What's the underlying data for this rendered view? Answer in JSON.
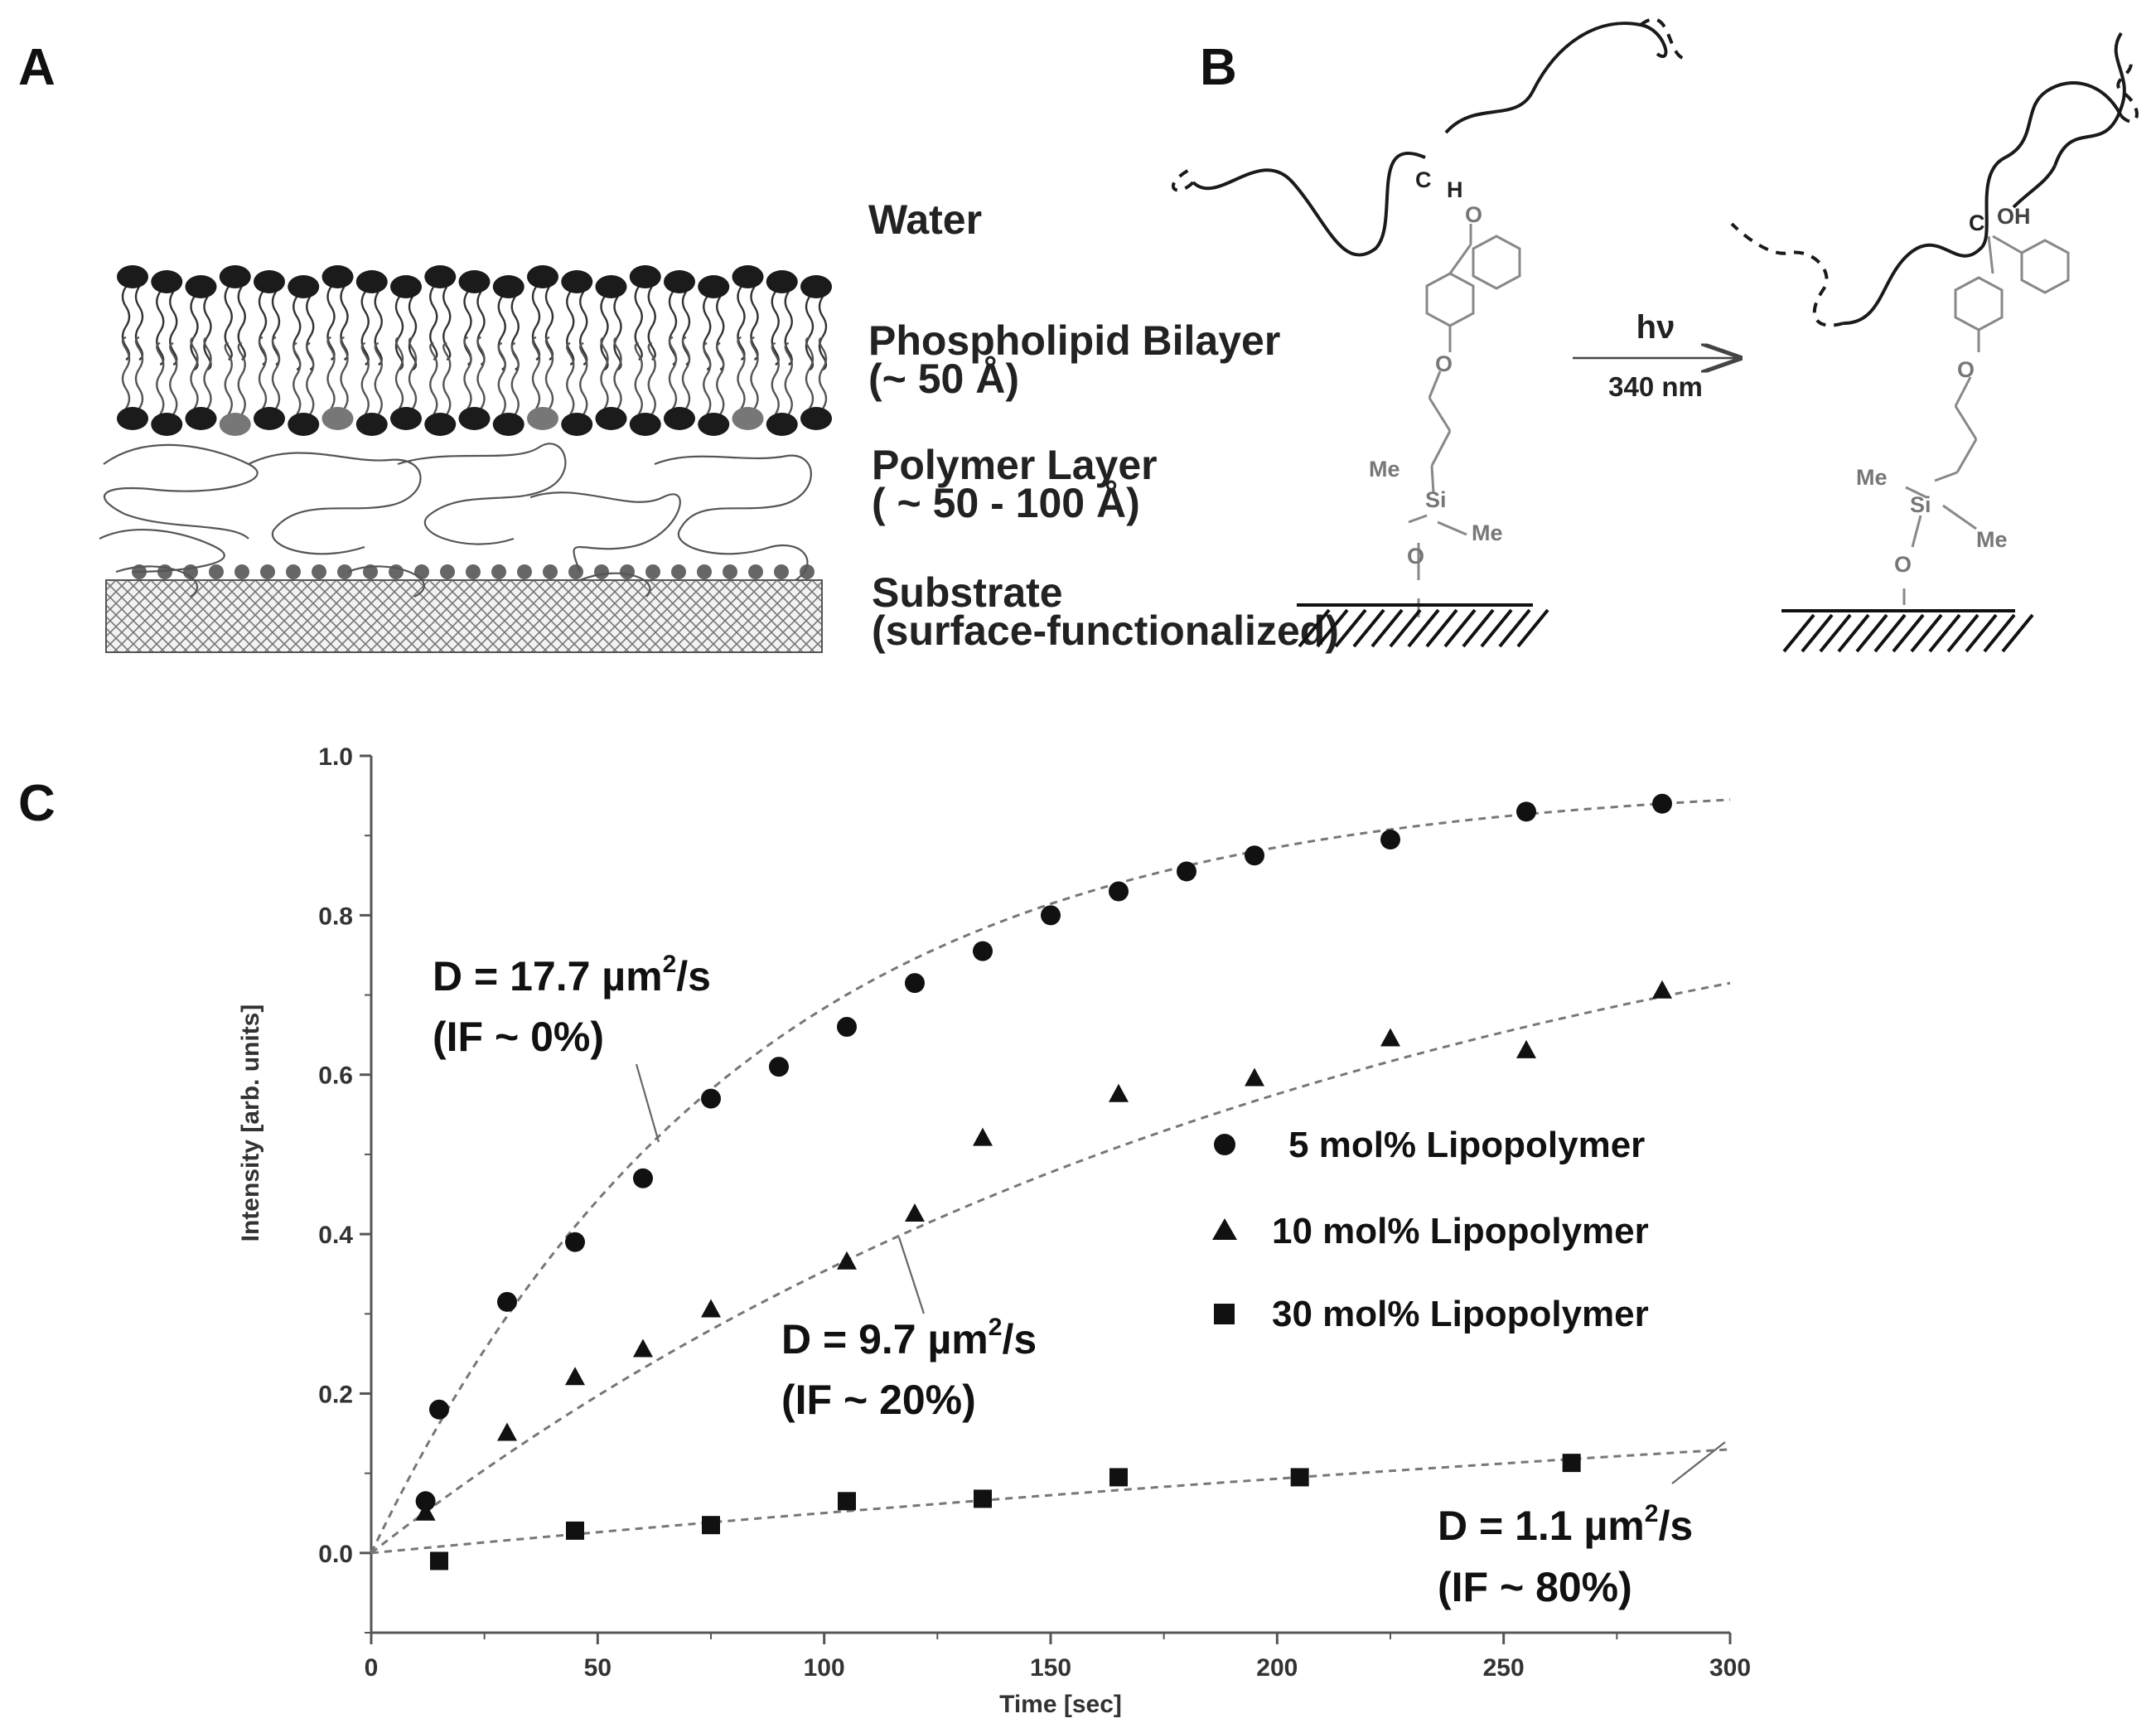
{
  "figure": {
    "panels": {
      "a": "A",
      "b": "B",
      "c": "C"
    }
  },
  "panel_a": {
    "layers": [
      {
        "name": "Water",
        "detail": ""
      },
      {
        "name": "Phospholipid Bilayer",
        "detail": "(~ 50 Å)"
      },
      {
        "name": "Polymer Layer",
        "detail": "( ~ 50 - 100 Å)"
      },
      {
        "name": "Substrate",
        "detail": "(surface-functionalized)"
      }
    ]
  },
  "panel_b": {
    "arrow_top": "hν",
    "arrow_bottom": "340 nm",
    "atoms": {
      "c": "C",
      "h": "H",
      "o": "O",
      "oh": "OH",
      "si": "Si",
      "me": "Me"
    }
  },
  "chart_data": {
    "type": "scatter",
    "xlabel": "Time [sec]",
    "ylabel": "Intensity [arb. units]",
    "xlim": [
      0,
      300
    ],
    "ylim": [
      -0.1,
      1.0
    ],
    "xticks": [
      0,
      50,
      100,
      150,
      200,
      250,
      300
    ],
    "yticks": [
      "0.0",
      "0.2",
      "0.4",
      "0.6",
      "0.8",
      "1.0"
    ],
    "series": [
      {
        "name": "5 mol% Lipopolymer",
        "marker": "circle",
        "x": [
          12,
          15,
          30,
          45,
          60,
          75,
          90,
          105,
          120,
          135,
          150,
          165,
          180,
          195,
          225,
          255,
          285
        ],
        "y": [
          0.065,
          0.18,
          0.315,
          0.39,
          0.47,
          0.57,
          0.61,
          0.66,
          0.715,
          0.755,
          0.8,
          0.83,
          0.855,
          0.875,
          0.895,
          0.93,
          0.94
        ],
        "fit_end": 0.945
      },
      {
        "name": "10 mol% Lipopolymer",
        "marker": "triangle",
        "x": [
          12,
          30,
          45,
          60,
          75,
          105,
          120,
          135,
          165,
          195,
          225,
          255,
          285
        ],
        "y": [
          0.05,
          0.15,
          0.22,
          0.255,
          0.305,
          0.365,
          0.425,
          0.52,
          0.575,
          0.595,
          0.645,
          0.63,
          0.705
        ],
        "fit_end": 0.715
      },
      {
        "name": "30 mol% Lipopolymer",
        "marker": "square",
        "x": [
          15,
          45,
          75,
          105,
          135,
          165,
          205,
          265
        ],
        "y": [
          -0.01,
          0.028,
          0.035,
          0.065,
          0.068,
          0.095,
          0.095,
          0.113
        ],
        "fit_end": 0.13
      }
    ],
    "annotations": [
      {
        "line1_pre": "D = 17.7 µm",
        "sup": "2",
        "line1_post": "/s",
        "line2": "(IF ~ 0%)"
      },
      {
        "line1_pre": "D = 9.7 µm",
        "sup": "2",
        "line1_post": "/s",
        "line2": "(IF ~ 20%)"
      },
      {
        "line1_pre": "D = 1.1 µm",
        "sup": "2",
        "line1_post": "/s",
        "line2": "(IF ~ 80%)"
      }
    ],
    "legend_position": "right"
  }
}
